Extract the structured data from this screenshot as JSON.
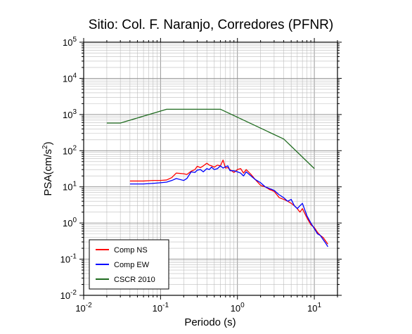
{
  "chart_data": {
    "type": "line",
    "title": "Sitio: Col. F. Naranjo, Corredores (PFNR)",
    "xlabel": "Periodo (s)",
    "ylabel_base": "PSA(cm/s",
    "ylabel_sup": "2",
    "ylabel_close": ")",
    "xscale": "log",
    "yscale": "log",
    "xlim": [
      0.01,
      20
    ],
    "ylim": [
      0.01,
      100000
    ],
    "grid": true,
    "legend_position": "bottom-left",
    "x_ticks": [
      {
        "value": 0.01,
        "base": "10",
        "exp": "-2"
      },
      {
        "value": 0.1,
        "base": "10",
        "exp": "-1"
      },
      {
        "value": 1,
        "base": "10",
        "exp": "0"
      },
      {
        "value": 10,
        "base": "10",
        "exp": "1"
      }
    ],
    "y_ticks": [
      {
        "value": 0.01,
        "base": "10",
        "exp": "-2"
      },
      {
        "value": 0.1,
        "base": "10",
        "exp": "-1"
      },
      {
        "value": 1,
        "base": "10",
        "exp": "0"
      },
      {
        "value": 10,
        "base": "10",
        "exp": "1"
      },
      {
        "value": 100,
        "base": "10",
        "exp": "2"
      },
      {
        "value": 1000,
        "base": "10",
        "exp": "3"
      },
      {
        "value": 10000,
        "base": "10",
        "exp": "4"
      },
      {
        "value": 100000,
        "base": "10",
        "exp": "5"
      }
    ],
    "series": [
      {
        "name": "Comp NS",
        "color": "#ff0000",
        "x": [
          0.04,
          0.06,
          0.08,
          0.1,
          0.12,
          0.14,
          0.16,
          0.2,
          0.22,
          0.25,
          0.28,
          0.3,
          0.33,
          0.36,
          0.4,
          0.43,
          0.46,
          0.5,
          0.55,
          0.6,
          0.65,
          0.7,
          0.75,
          0.8,
          0.9,
          1.0,
          1.1,
          1.2,
          1.3,
          1.5,
          1.7,
          2.0,
          2.3,
          2.6,
          3.0,
          3.5,
          4.0,
          4.5,
          5.0,
          5.5,
          6.0,
          6.5,
          7.0,
          8.0,
          9.0,
          10.0,
          11.0,
          12.0,
          13.0,
          14.0,
          15.0
        ],
        "y": [
          14.5,
          14.5,
          15.0,
          15.0,
          15.5,
          18.0,
          24.0,
          23.0,
          22.0,
          27.0,
          30.0,
          37.0,
          34.0,
          38.0,
          45.0,
          40.0,
          38.0,
          35.0,
          40.0,
          38.0,
          55.0,
          33.0,
          34.0,
          30.0,
          25.0,
          30.0,
          32.0,
          24.0,
          30.0,
          22.0,
          16.0,
          11.0,
          10.0,
          8.5,
          7.5,
          5.0,
          4.5,
          4.0,
          3.5,
          3.0,
          2.5,
          2.0,
          2.5,
          1.4,
          0.9,
          0.75,
          0.55,
          0.45,
          0.4,
          0.32,
          0.26
        ]
      },
      {
        "name": "Comp EW",
        "color": "#0000ff",
        "x": [
          0.04,
          0.06,
          0.08,
          0.1,
          0.12,
          0.14,
          0.16,
          0.2,
          0.22,
          0.25,
          0.28,
          0.3,
          0.33,
          0.36,
          0.4,
          0.43,
          0.46,
          0.5,
          0.55,
          0.6,
          0.65,
          0.7,
          0.75,
          0.8,
          0.9,
          1.0,
          1.1,
          1.2,
          1.3,
          1.5,
          1.7,
          2.0,
          2.3,
          2.6,
          3.0,
          3.5,
          4.0,
          4.5,
          5.0,
          5.5,
          6.0,
          6.5,
          7.0,
          8.0,
          9.0,
          10.0,
          11.0,
          12.0,
          13.0,
          14.0,
          15.0
        ],
        "y": [
          12.0,
          12.0,
          12.5,
          13.0,
          13.5,
          15.0,
          17.0,
          15.0,
          17.0,
          26.0,
          25.0,
          29.0,
          30.0,
          26.0,
          32.0,
          30.0,
          35.0,
          30.0,
          32.0,
          38.0,
          33.0,
          36.0,
          38.0,
          28.0,
          28.0,
          26.0,
          24.0,
          20.0,
          26.0,
          20.0,
          16.0,
          13.0,
          10.0,
          9.0,
          8.0,
          6.0,
          5.0,
          4.0,
          4.5,
          3.0,
          2.5,
          3.0,
          3.5,
          1.6,
          1.0,
          0.7,
          0.5,
          0.45,
          0.35,
          0.28,
          0.22
        ]
      },
      {
        "name": "CSCR 2010",
        "color": "#1f6b1f",
        "x": [
          0.02,
          0.03,
          0.12,
          0.6,
          4.0,
          10.0
        ],
        "y": [
          580,
          580,
          1400,
          1400,
          210,
          32
        ]
      }
    ]
  }
}
